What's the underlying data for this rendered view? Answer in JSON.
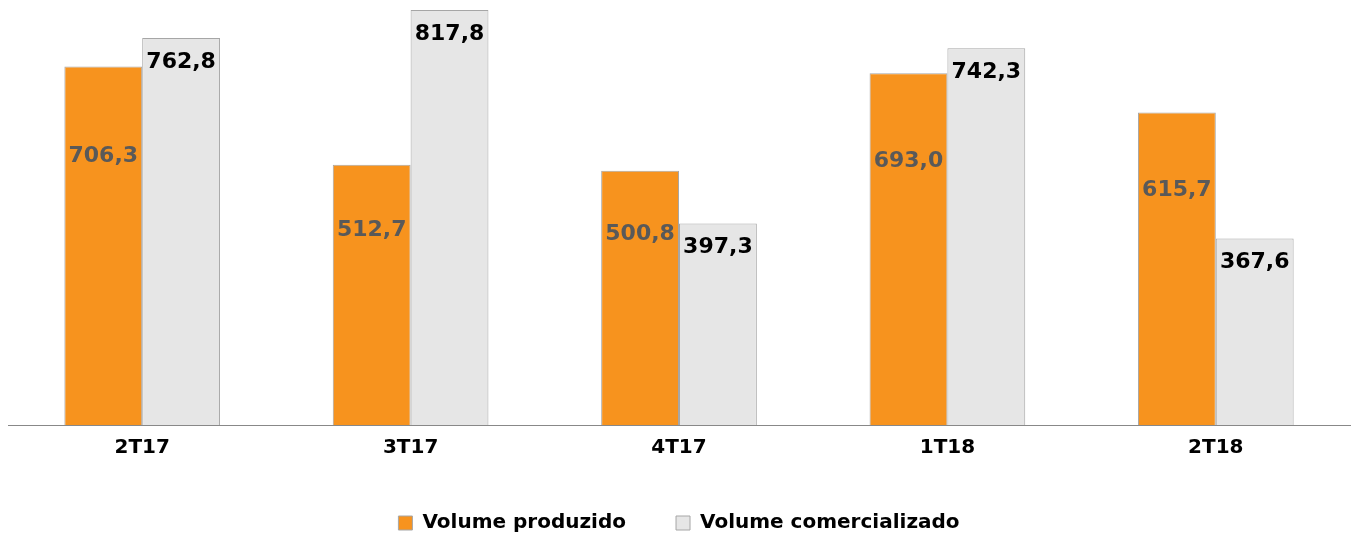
{
  "chart_data": {
    "type": "bar",
    "categories": [
      "2T17",
      "3T17",
      "4T17",
      "1T18",
      "2T18"
    ],
    "series": [
      {
        "name": "Volume produzido",
        "color": "#f7931e",
        "values": [
          706.3,
          512.7,
          500.8,
          693.0,
          615.7
        ],
        "value_labels": [
          "706,3",
          "512,7",
          "500,8",
          "693,0",
          "615,7"
        ]
      },
      {
        "name": "Volume comercializado",
        "color": "#e6e6e6",
        "values": [
          762.8,
          817.8,
          397.3,
          742.3,
          367.6
        ],
        "value_labels": [
          "762,8",
          "817,8",
          "397,3",
          "742,3",
          "367,6"
        ]
      }
    ],
    "legend": "bottom",
    "grid": false
  }
}
